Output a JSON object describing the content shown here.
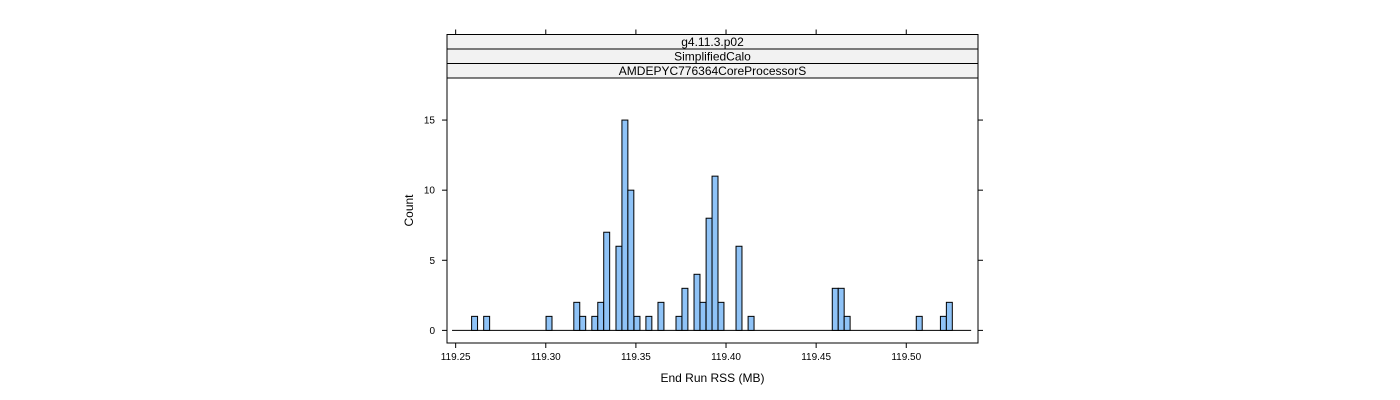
{
  "chart_data": {
    "type": "bar",
    "strips": [
      "g4.11.3.p02",
      "SimplifiedCalo",
      "AMDEPYC776364CoreProcessorS"
    ],
    "xlabel": "End Run RSS (MB)",
    "ylabel": "Count",
    "xlim": [
      119.2452,
      119.5398
    ],
    "ylim": [
      -0.9,
      18.0
    ],
    "x_ticks": [
      119.25,
      119.3,
      119.35,
      119.4,
      119.45,
      119.5
    ],
    "y_ticks": [
      0,
      5,
      10,
      15
    ],
    "baseline": [
      119.248,
      119.536
    ],
    "bin_width": 0.0033,
    "bins": [
      {
        "x": 119.2605,
        "count": 1
      },
      {
        "x": 119.2672,
        "count": 1
      },
      {
        "x": 119.3018,
        "count": 1
      },
      {
        "x": 119.3172,
        "count": 2
      },
      {
        "x": 119.3205,
        "count": 1
      },
      {
        "x": 119.3272,
        "count": 1
      },
      {
        "x": 119.3305,
        "count": 2
      },
      {
        "x": 119.3338,
        "count": 7
      },
      {
        "x": 119.3406,
        "count": 6
      },
      {
        "x": 119.3439,
        "count": 15
      },
      {
        "x": 119.3472,
        "count": 10
      },
      {
        "x": 119.3506,
        "count": 1
      },
      {
        "x": 119.3572,
        "count": 1
      },
      {
        "x": 119.3639,
        "count": 2
      },
      {
        "x": 119.3739,
        "count": 1
      },
      {
        "x": 119.3772,
        "count": 3
      },
      {
        "x": 119.3839,
        "count": 4
      },
      {
        "x": 119.3872,
        "count": 2
      },
      {
        "x": 119.3906,
        "count": 8
      },
      {
        "x": 119.3939,
        "count": 11
      },
      {
        "x": 119.3972,
        "count": 2
      },
      {
        "x": 119.4072,
        "count": 6
      },
      {
        "x": 119.4139,
        "count": 1
      },
      {
        "x": 119.4606,
        "count": 3
      },
      {
        "x": 119.4639,
        "count": 3
      },
      {
        "x": 119.4672,
        "count": 1
      },
      {
        "x": 119.5072,
        "count": 1
      },
      {
        "x": 119.5206,
        "count": 1
      },
      {
        "x": 119.5239,
        "count": 2
      }
    ],
    "colors": {
      "bar_fill": "#8fc3f7",
      "bar_stroke": "#000000",
      "strip_fill": "#f2f2f2"
    }
  }
}
